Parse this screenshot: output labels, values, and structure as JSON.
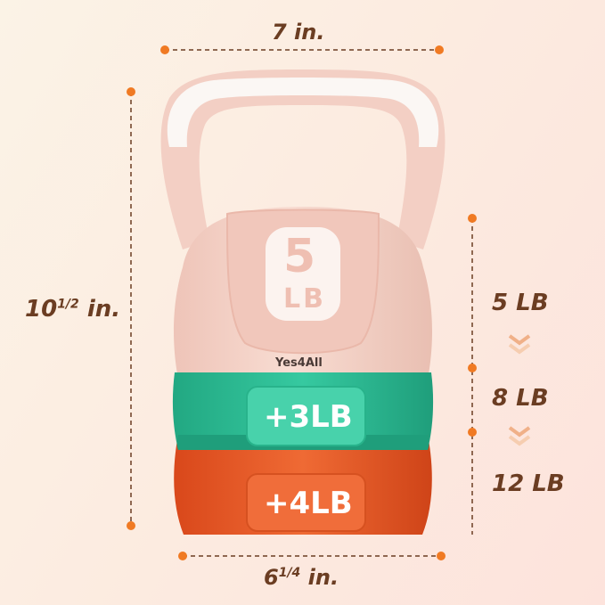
{
  "dimensions": {
    "width": "7 in.",
    "height_whole": "10",
    "height_fraction": "1/2",
    "height_unit": "in.",
    "base_whole": "6",
    "base_fraction": "1/4",
    "base_unit": "in."
  },
  "kettlebell": {
    "base_weight_number": "5",
    "base_weight_unit": "LB",
    "brand": "Yes4All",
    "band_green_label": "+3LB",
    "band_orange_label": "+4LB"
  },
  "weight_steps": [
    "5 LB",
    "8 LB",
    "12 LB"
  ],
  "colors": {
    "accent_dot": "#f07a23",
    "text": "#6b3d22",
    "body_pink": "#f4d2c8",
    "band_green": "#2fc39a",
    "band_orange": "#ec5a24",
    "handle_white": "#fbf7f4"
  }
}
